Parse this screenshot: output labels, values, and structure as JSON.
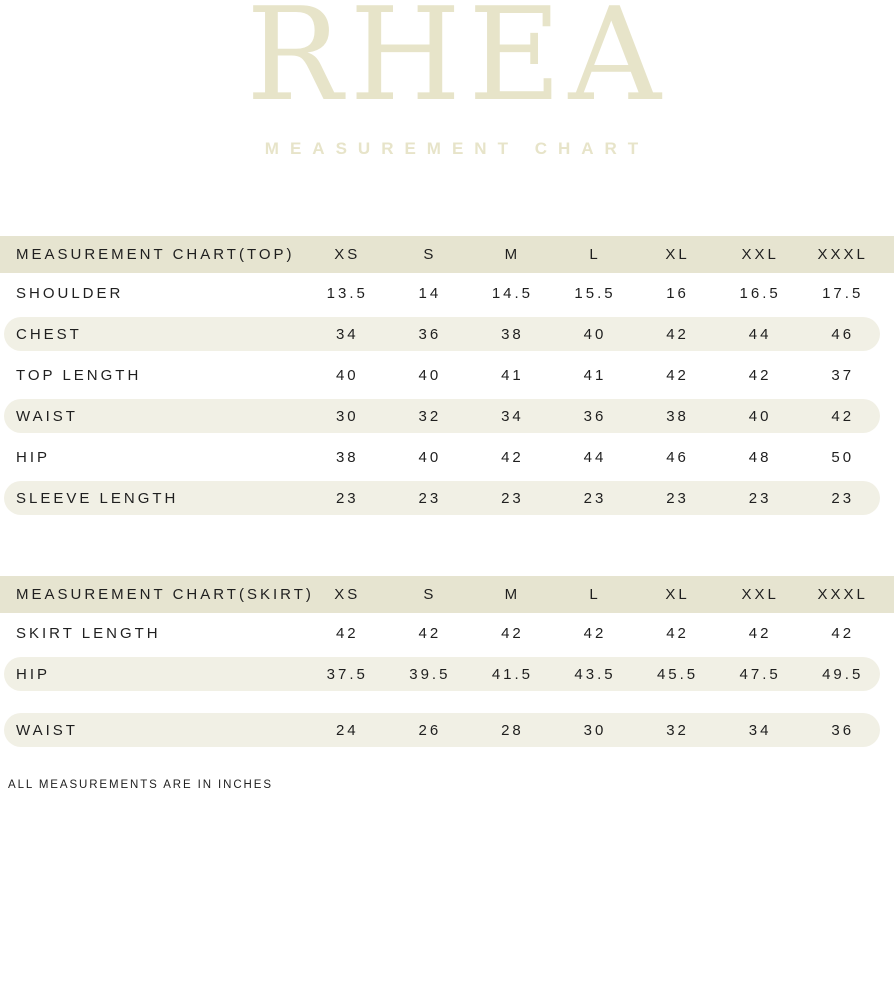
{
  "brand": {
    "logo": "RHEA",
    "subtitle": "MEASUREMENT CHART"
  },
  "colors": {
    "brand": "#e7e4c9",
    "header_bg": "#e6e4d0",
    "stripe_bg": "#f1f0e5",
    "text": "#1f1f1f"
  },
  "footnote": "ALL MEASUREMENTS ARE IN INCHES",
  "chart_data": [
    {
      "type": "table",
      "title": "MEASUREMENT CHART(TOP)",
      "columns": [
        "XS",
        "S",
        "M",
        "L",
        "XL",
        "XXL",
        "XXXL"
      ],
      "units": "inches",
      "rows": [
        {
          "label": "SHOULDER",
          "values": [
            "13.5",
            "14",
            "14.5",
            "15.5",
            "16",
            "16.5",
            "17.5"
          ],
          "striped": false
        },
        {
          "label": "CHEST",
          "values": [
            "34",
            "36",
            "38",
            "40",
            "42",
            "44",
            "46"
          ],
          "striped": true
        },
        {
          "label": "TOP LENGTH",
          "values": [
            "40",
            "40",
            "41",
            "41",
            "42",
            "42",
            "37"
          ],
          "striped": false
        },
        {
          "label": "WAIST",
          "values": [
            "30",
            "32",
            "34",
            "36",
            "38",
            "40",
            "42"
          ],
          "striped": true
        },
        {
          "label": "HIP",
          "values": [
            "38",
            "40",
            "42",
            "44",
            "46",
            "48",
            "50"
          ],
          "striped": false
        },
        {
          "label": "SLEEVE LENGTH",
          "values": [
            "23",
            "23",
            "23",
            "23",
            "23",
            "23",
            "23"
          ],
          "striped": true
        }
      ]
    },
    {
      "type": "table",
      "title": "MEASUREMENT CHART(SKIRT)",
      "columns": [
        "XS",
        "S",
        "M",
        "L",
        "XL",
        "XXL",
        "XXXL"
      ],
      "units": "inches",
      "rows": [
        {
          "label": "SKIRT LENGTH",
          "values": [
            "42",
            "42",
            "42",
            "42",
            "42",
            "42",
            "42"
          ],
          "striped": false
        },
        {
          "label": "HIP",
          "values": [
            "37.5",
            "39.5",
            "41.5",
            "43.5",
            "45.5",
            "47.5",
            "49.5"
          ],
          "striped": true
        },
        {
          "label": "WAIST",
          "values": [
            "24",
            "26",
            "28",
            "30",
            "32",
            "34",
            "36"
          ],
          "striped": true,
          "gap_before": true
        }
      ]
    }
  ]
}
